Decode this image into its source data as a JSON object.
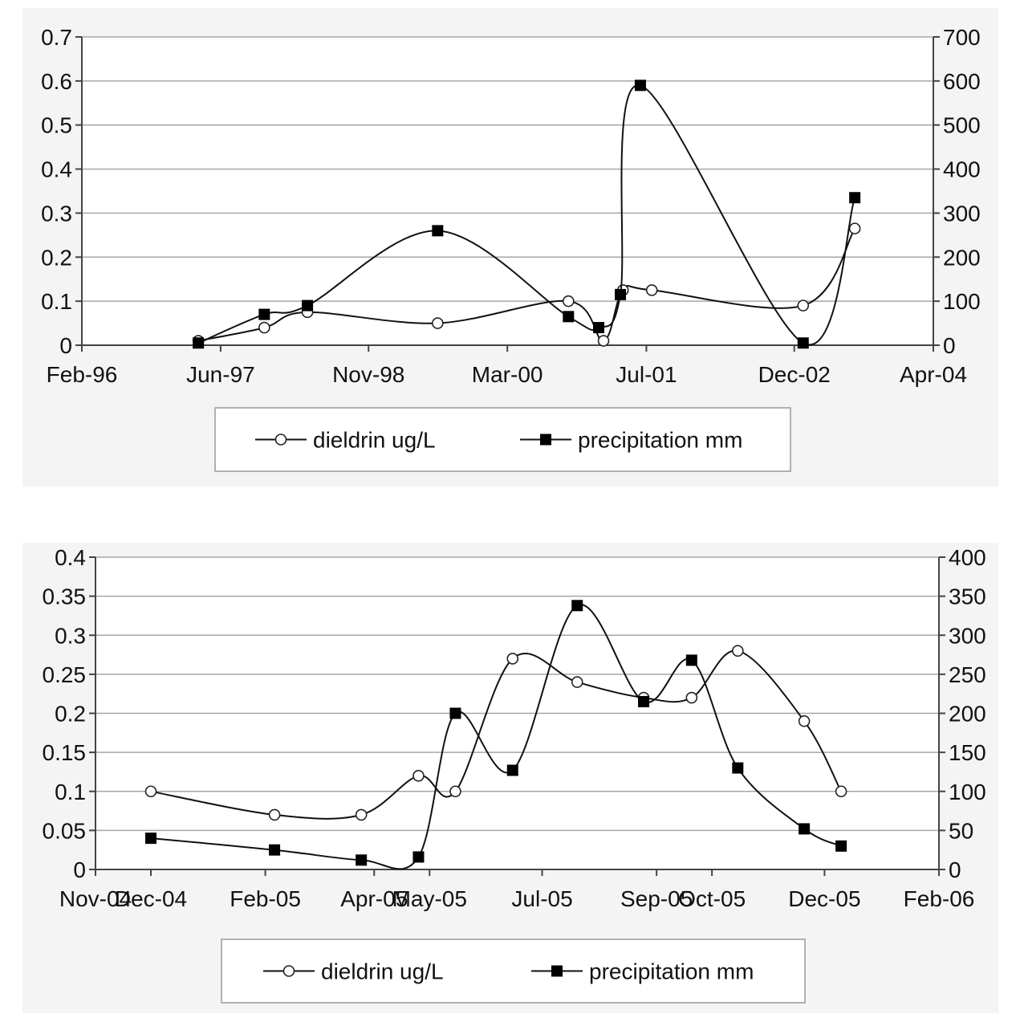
{
  "chart_data": [
    {
      "type": "line",
      "x_kind": "date",
      "x_ticks": [
        "1996-02-01",
        "1997-06-01",
        "1998-11-01",
        "2000-03-01",
        "2001-07-01",
        "2002-12-01",
        "2004-04-01"
      ],
      "x_tick_labels": [
        "Feb-96",
        "Jun-97",
        "Nov-98",
        "Mar-00",
        "Jul-01",
        "Dec-02",
        "Apr-04"
      ],
      "y_left": {
        "min": 0,
        "max": 0.7,
        "ticks": [
          0,
          0.1,
          0.2,
          0.3,
          0.4,
          0.5,
          0.6,
          0.7
        ],
        "tick_labels": [
          "0",
          "0.1",
          "0.2",
          "0.3",
          "0.4",
          "0.5",
          "0.6",
          "0.7"
        ]
      },
      "y_right": {
        "min": 0,
        "max": 700,
        "ticks": [
          0,
          100,
          200,
          300,
          400,
          500,
          600,
          700
        ],
        "tick_labels": [
          "0",
          "100",
          "200",
          "300",
          "400",
          "500",
          "600",
          "700"
        ]
      },
      "grid": true,
      "legend_position": "bottom",
      "series": [
        {
          "name": "dieldrin ug/L",
          "axis": "left",
          "marker": "open-circle",
          "x": [
            "1997-03-15",
            "1997-11-01",
            "1998-04-01",
            "1999-07-01",
            "2000-10-01",
            "2001-02-01",
            "2001-04-10",
            "2001-07-20",
            "2003-01-01",
            "2003-07-01"
          ],
          "y": [
            0.01,
            0.04,
            0.075,
            0.05,
            0.1,
            0.01,
            0.125,
            0.125,
            0.09,
            0.265
          ]
        },
        {
          "name": "precipitation mm",
          "axis": "right",
          "marker": "filled-square",
          "x": [
            "1997-03-15",
            "1997-11-01",
            "1998-04-01",
            "1999-07-01",
            "2000-10-01",
            "2001-01-15",
            "2001-04-01",
            "2001-06-10",
            "2003-01-01",
            "2003-07-01"
          ],
          "y": [
            5,
            70,
            90,
            260,
            65,
            40,
            115,
            590,
            5,
            335
          ]
        }
      ]
    },
    {
      "type": "line",
      "x_kind": "date",
      "x_ticks": [
        "2004-11-01",
        "2004-12-01",
        "2005-02-01",
        "2005-04-01",
        "2005-05-01",
        "2005-07-01",
        "2005-09-01",
        "2005-10-01",
        "2005-12-01",
        "2006-02-01"
      ],
      "x_tick_labels": [
        "Nov-04",
        "Dec-04",
        "Feb-05",
        "Apr-05",
        "May-05",
        "Jul-05",
        "Sep-05",
        "Oct-05",
        "Dec-05",
        "Feb-06"
      ],
      "y_left": {
        "min": 0,
        "max": 0.4,
        "ticks": [
          0,
          0.05,
          0.1,
          0.15,
          0.2,
          0.25,
          0.3,
          0.35,
          0.4
        ],
        "tick_labels": [
          "0",
          "0.05",
          "0.1",
          "0.15",
          "0.2",
          "0.25",
          "0.3",
          "0.35",
          "0.4"
        ]
      },
      "y_right": {
        "min": 0,
        "max": 400,
        "ticks": [
          0,
          50,
          100,
          150,
          200,
          250,
          300,
          350,
          400
        ],
        "tick_labels": [
          "0",
          "50",
          "100",
          "150",
          "200",
          "250",
          "300",
          "350",
          "400"
        ]
      },
      "grid": true,
      "legend_position": "bottom",
      "series": [
        {
          "name": "dieldrin ug/L",
          "axis": "left",
          "marker": "open-circle",
          "x": [
            "2004-12-01",
            "2005-02-06",
            "2005-03-25",
            "2005-04-25",
            "2005-05-15",
            "2005-06-15",
            "2005-07-20",
            "2005-08-25",
            "2005-09-20",
            "2005-10-15",
            "2005-11-20",
            "2005-12-10"
          ],
          "y": [
            0.1,
            0.07,
            0.07,
            0.12,
            0.1,
            0.27,
            0.24,
            0.22,
            0.22,
            0.28,
            0.19,
            0.1
          ]
        },
        {
          "name": "precipitation mm",
          "axis": "right",
          "marker": "filled-square",
          "x": [
            "2004-12-01",
            "2005-02-06",
            "2005-03-25",
            "2005-04-25",
            "2005-05-15",
            "2005-06-15",
            "2005-07-20",
            "2005-08-25",
            "2005-09-20",
            "2005-10-15",
            "2005-11-20",
            "2005-12-10"
          ],
          "y": [
            40,
            25,
            12,
            16,
            200,
            127,
            338,
            215,
            268,
            130,
            52,
            30
          ]
        }
      ]
    }
  ]
}
